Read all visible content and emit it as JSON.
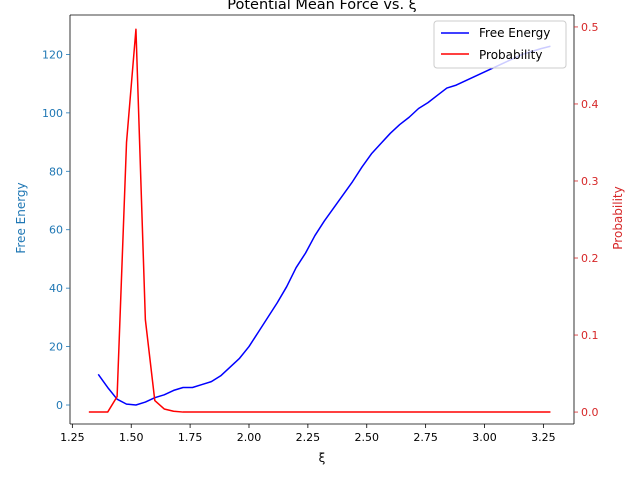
{
  "chart_data": {
    "type": "line",
    "title": "Potential Mean Force vs. ξ",
    "xlabel": "ξ",
    "ylabel_left": "Free Energy",
    "ylabel_right": "Probability",
    "xlim": [
      1.24,
      3.38
    ],
    "ylim_left": [
      -6.5,
      133.5
    ],
    "ylim_right": [
      -0.0155,
      0.5155
    ],
    "x_ticks": [
      1.25,
      1.5,
      1.75,
      2.0,
      2.25,
      2.5,
      2.75,
      3.0,
      3.25
    ],
    "x_tick_labels": [
      "1.25",
      "1.50",
      "1.75",
      "2.00",
      "2.25",
      "2.50",
      "2.75",
      "3.00",
      "3.25"
    ],
    "y_left_ticks": [
      0,
      20,
      40,
      60,
      80,
      100,
      120
    ],
    "y_left_tick_labels": [
      "0",
      "20",
      "40",
      "60",
      "80",
      "100",
      "120"
    ],
    "y_right_ticks": [
      0.0,
      0.1,
      0.2,
      0.3,
      0.4,
      0.5
    ],
    "y_right_tick_labels": [
      "0.0",
      "0.1",
      "0.2",
      "0.3",
      "0.4",
      "0.5"
    ],
    "legend_position": "top-right",
    "grid": false,
    "colors": {
      "free_energy": "#0000ff",
      "probability": "#ff0000",
      "left_axis": "#1f77b4",
      "right_axis": "#d62728",
      "axes": "#000000"
    },
    "series": [
      {
        "name": "Free Energy",
        "axis": "left",
        "x": [
          1.36,
          1.4,
          1.44,
          1.48,
          1.52,
          1.56,
          1.6,
          1.64,
          1.68,
          1.72,
          1.76,
          1.8,
          1.84,
          1.88,
          1.92,
          1.96,
          2.0,
          2.04,
          2.08,
          2.12,
          2.16,
          2.2,
          2.24,
          2.28,
          2.32,
          2.36,
          2.4,
          2.44,
          2.48,
          2.52,
          2.56,
          2.6,
          2.64,
          2.68,
          2.72,
          2.76,
          2.8,
          2.84,
          2.88,
          2.92,
          2.96,
          3.0,
          3.04,
          3.08,
          3.12,
          3.16,
          3.2,
          3.24,
          3.28
        ],
        "y": [
          10.5,
          6.0,
          2.0,
          0.3,
          0.0,
          1.0,
          2.5,
          3.5,
          5.0,
          6.0,
          6.0,
          7.0,
          8.0,
          10.0,
          13.0,
          16.0,
          20.0,
          25.0,
          30.0,
          35.0,
          40.5,
          47.0,
          52.0,
          58.0,
          63.0,
          67.5,
          72.0,
          76.5,
          81.5,
          86.0,
          89.5,
          93.0,
          96.0,
          98.5,
          101.5,
          103.5,
          106.0,
          108.5,
          109.5,
          111.0,
          112.5,
          114.0,
          115.5,
          117.0,
          118.5,
          120.0,
          121.0,
          122.0,
          122.8
        ]
      },
      {
        "name": "Probability",
        "axis": "right",
        "x": [
          1.32,
          1.36,
          1.4,
          1.44,
          1.48,
          1.52,
          1.56,
          1.6,
          1.64,
          1.68,
          1.72,
          1.76,
          1.8,
          1.84,
          1.88,
          1.92,
          1.96,
          2.0,
          2.1,
          2.2,
          2.3,
          2.4,
          2.5,
          2.6,
          2.7,
          2.8,
          2.9,
          3.0,
          3.1,
          3.2,
          3.28
        ],
        "y": [
          0.0,
          0.0,
          0.0,
          0.02,
          0.35,
          0.497,
          0.12,
          0.015,
          0.004,
          0.001,
          0.0,
          0.0,
          0.0,
          0.0,
          0.0,
          0.0,
          0.0,
          0.0,
          0.0,
          0.0,
          0.0,
          0.0,
          0.0,
          0.0,
          0.0,
          0.0,
          0.0,
          0.0,
          0.0,
          0.0,
          0.0
        ]
      }
    ]
  }
}
